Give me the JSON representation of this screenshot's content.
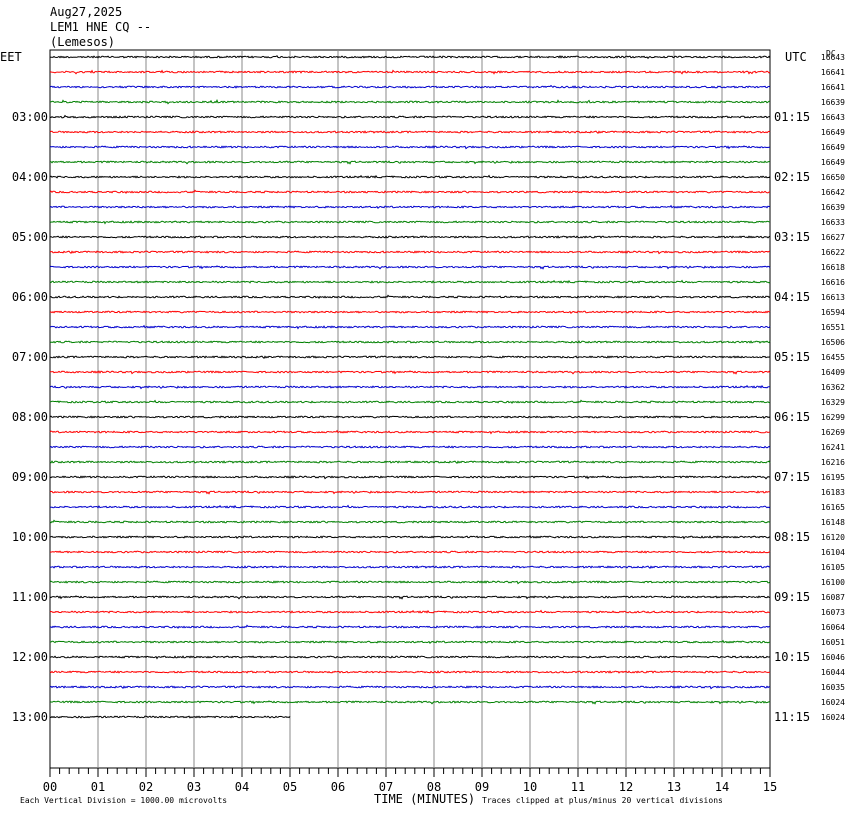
{
  "header": {
    "date": "Aug27,2025",
    "channel": "LEM1 HNE CQ --",
    "station": "(Lemesos)"
  },
  "chart_data": {
    "type": "line",
    "title": "",
    "xlabel": "TIME (MINUTES)",
    "xlim": [
      0,
      15
    ],
    "x_ticks": [
      "00",
      "01",
      "02",
      "03",
      "04",
      "05",
      "06",
      "07",
      "08",
      "09",
      "10",
      "11",
      "12",
      "13",
      "14",
      "15"
    ],
    "left_timezone": "EET",
    "right_timezone": "UTC",
    "dc_label": "DC",
    "trace_colors": [
      "#000000",
      "#ff0000",
      "#0000cd",
      "#008000"
    ],
    "traces_per_hour": 4,
    "last_trace_minutes": 5,
    "hour_labels": [
      {
        "trace_index": 4,
        "left": "03:00",
        "right": "01:15"
      },
      {
        "trace_index": 8,
        "left": "04:00",
        "right": "02:15"
      },
      {
        "trace_index": 12,
        "left": "05:00",
        "right": "03:15"
      },
      {
        "trace_index": 16,
        "left": "06:00",
        "right": "04:15"
      },
      {
        "trace_index": 20,
        "left": "07:00",
        "right": "05:15"
      },
      {
        "trace_index": 24,
        "left": "08:00",
        "right": "06:15"
      },
      {
        "trace_index": 28,
        "left": "09:00",
        "right": "07:15"
      },
      {
        "trace_index": 32,
        "left": "10:00",
        "right": "08:15"
      },
      {
        "trace_index": 36,
        "left": "11:00",
        "right": "09:15"
      },
      {
        "trace_index": 40,
        "left": "12:00",
        "right": "10:15"
      },
      {
        "trace_index": 44,
        "left": "13:00",
        "right": "11:15"
      }
    ],
    "dc_values": [
      "16643",
      "16641",
      "16641",
      "16639",
      "16643",
      "16649",
      "16649",
      "16649",
      "16650",
      "16642",
      "16639",
      "16633",
      "16627",
      "16622",
      "16618",
      "16616",
      "16613",
      "16594",
      "16551",
      "16506",
      "16455",
      "16409",
      "16362",
      "16329",
      "16299",
      "16269",
      "16241",
      "16216",
      "16195",
      "16183",
      "16165",
      "16148",
      "16120",
      "16104",
      "16105",
      "16100",
      "16087",
      "16073",
      "16064",
      "16051",
      "16046",
      "16044",
      "16035",
      "16024",
      "16024"
    ],
    "footer_left": "Each Vertical Division = 1000.00 microvolts",
    "footer_right": "Traces clipped at plus/minus 20 vertical divisions"
  }
}
